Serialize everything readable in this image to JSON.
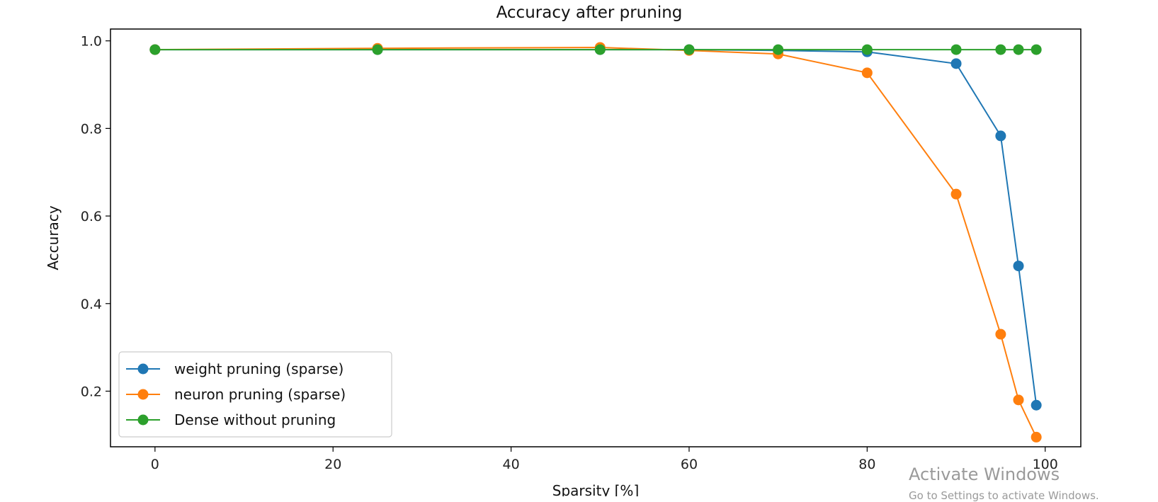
{
  "chart_data": {
    "type": "line",
    "title": "Accuracy after pruning",
    "xlabel": "Sparsity [%]",
    "ylabel": "Accuracy",
    "xlim": [
      -5,
      104
    ],
    "ylim": [
      0.073,
      1.027
    ],
    "xticks": [
      0,
      20,
      40,
      60,
      80,
      100
    ],
    "yticks": [
      0.2,
      0.4,
      0.6,
      0.8,
      1.0
    ],
    "ytick_labels": [
      "0.2",
      "0.4",
      "0.6",
      "0.8",
      "1.0"
    ],
    "grid": false,
    "legend_position": "lower-left",
    "series": [
      {
        "name": "weight pruning (sparse)",
        "color": "#1f77b4",
        "x": [
          0,
          25,
          50,
          60,
          70,
          80,
          90,
          95,
          97,
          99
        ],
        "y": [
          0.98,
          0.98,
          0.98,
          0.98,
          0.978,
          0.975,
          0.948,
          0.783,
          0.486,
          0.168
        ]
      },
      {
        "name": "neuron pruning (sparse)",
        "color": "#ff7f0e",
        "x": [
          0,
          25,
          50,
          60,
          70,
          80,
          90,
          95,
          97,
          99
        ],
        "y": [
          0.98,
          0.983,
          0.985,
          0.978,
          0.97,
          0.927,
          0.65,
          0.33,
          0.18,
          0.095
        ]
      },
      {
        "name": "Dense without pruning",
        "color": "#2ca02c",
        "x": [
          0,
          25,
          50,
          60,
          70,
          80,
          90,
          95,
          97,
          99
        ],
        "y": [
          0.98,
          0.98,
          0.98,
          0.98,
          0.98,
          0.98,
          0.98,
          0.98,
          0.98,
          0.98
        ]
      }
    ]
  },
  "watermark": {
    "line1": "Activate Windows",
    "line2": "Go to Settings to activate Windows."
  }
}
